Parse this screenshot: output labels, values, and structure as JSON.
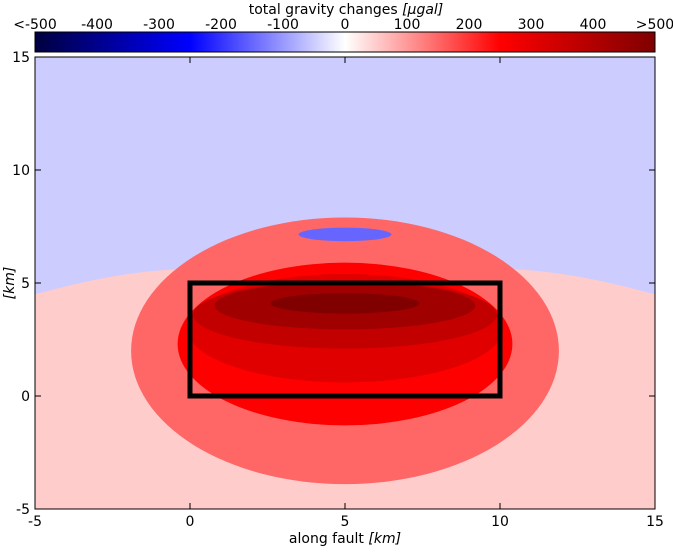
{
  "chart_data": {
    "type": "contour",
    "colorbar": {
      "label_text": "total gravity changes",
      "label_unit": "[μgal]",
      "range": [
        -500,
        500
      ],
      "tick_values": [
        -500,
        -400,
        -300,
        -200,
        -100,
        0,
        100,
        200,
        300,
        400,
        500
      ],
      "tick_labels": [
        "<-500",
        "-400",
        "-300",
        "-200",
        "-100",
        "0",
        "100",
        "200",
        "300",
        "400",
        ">500"
      ],
      "colors": [
        "#00003f",
        "#0000ff",
        "#ffffff",
        "#ff0000",
        "#7f0000"
      ]
    },
    "xaxis": {
      "label_text": "along fault",
      "label_unit": "[km]",
      "range": [
        -5,
        15
      ],
      "ticks": [
        -5,
        0,
        5,
        10,
        15
      ]
    },
    "yaxis": {
      "label_text": "[km]",
      "range": [
        -5,
        15
      ],
      "ticks": [
        -5,
        0,
        5,
        10,
        15
      ]
    },
    "background_level": -50,
    "fault_rectangle": {
      "x": [
        0,
        10
      ],
      "y": [
        0,
        5
      ]
    },
    "contour_regions": [
      {
        "level": 50,
        "shape": "boundary",
        "x_left": -5,
        "x_right": 15,
        "top_center_y": 5.7,
        "top_edge_y": 4.5,
        "bottom_y": -5,
        "color": "#ffcccc"
      },
      {
        "level": 150,
        "shape": "ellipse",
        "cx": 5,
        "cy": 2.0,
        "rx": 6.9,
        "ry": 5.9,
        "bottom_y": -3.9,
        "top_y": 5.6,
        "color": "#ff6666"
      },
      {
        "level": 250,
        "shape": "ellipse",
        "cx": 5,
        "cy": 2.3,
        "rx": 5.4,
        "ry": 3.6,
        "bottom_y": -1.3,
        "top_y": 5.4,
        "color": "#ff0000"
      },
      {
        "level": 300,
        "shape": "ellipse",
        "cx": 5,
        "cy": 3.0,
        "rx": 5.1,
        "ry": 2.4,
        "bottom_y": 0.5,
        "top_y": 5.1,
        "color": "#e00000"
      },
      {
        "level": 350,
        "shape": "ellipse",
        "cx": 5,
        "cy": 3.6,
        "rx": 4.9,
        "ry": 1.5,
        "bottom_y": 2.3,
        "top_y": 5.0,
        "color": "#c20000"
      },
      {
        "level": 400,
        "shape": "ellipse",
        "cx": 5,
        "cy": 4.0,
        "rx": 4.2,
        "ry": 1.05,
        "bottom_y": 3.1,
        "top_y": 4.85,
        "color": "#a00000"
      },
      {
        "level": 450,
        "shape": "ellipse",
        "cx": 5,
        "cy": 4.1,
        "rx": 2.4,
        "ry": 0.45,
        "bottom_y": 3.6,
        "top_y": 4.6,
        "color": "#800000"
      },
      {
        "level": -150,
        "shape": "ellipse",
        "cx": 5,
        "cy": 7.15,
        "rx": 1.5,
        "ry": 0.3,
        "color": "#6666ff"
      }
    ]
  }
}
